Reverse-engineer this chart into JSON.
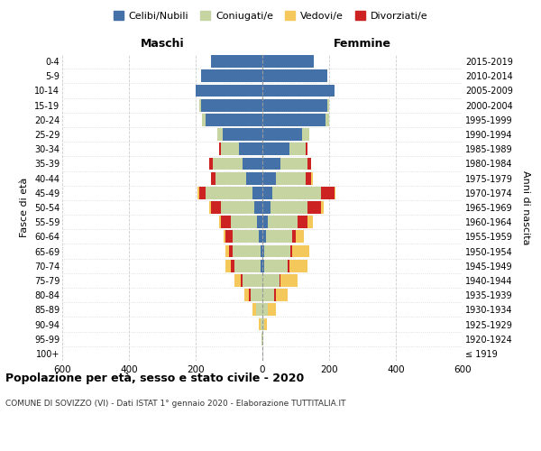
{
  "age_groups": [
    "100+",
    "95-99",
    "90-94",
    "85-89",
    "80-84",
    "75-79",
    "70-74",
    "65-69",
    "60-64",
    "55-59",
    "50-54",
    "45-49",
    "40-44",
    "35-39",
    "30-34",
    "25-29",
    "20-24",
    "15-19",
    "10-14",
    "5-9",
    "0-4"
  ],
  "birth_years": [
    "≤ 1919",
    "1920-1924",
    "1925-1929",
    "1930-1934",
    "1935-1939",
    "1940-1944",
    "1945-1949",
    "1950-1954",
    "1955-1959",
    "1960-1964",
    "1965-1969",
    "1970-1974",
    "1975-1979",
    "1980-1984",
    "1985-1989",
    "1990-1994",
    "1995-1999",
    "2000-2004",
    "2005-2009",
    "2010-2014",
    "2015-2019"
  ],
  "male": {
    "celibi": [
      0,
      0,
      0,
      0,
      0,
      0,
      5,
      5,
      10,
      15,
      25,
      30,
      50,
      60,
      70,
      120,
      170,
      185,
      200,
      185,
      155
    ],
    "coniugati": [
      0,
      2,
      5,
      20,
      35,
      60,
      80,
      85,
      80,
      80,
      100,
      140,
      90,
      90,
      55,
      15,
      10,
      5,
      0,
      0,
      0
    ],
    "vedovi": [
      0,
      2,
      5,
      10,
      15,
      20,
      15,
      10,
      5,
      5,
      5,
      5,
      0,
      0,
      0,
      0,
      0,
      0,
      0,
      0,
      0
    ],
    "divorziati": [
      0,
      0,
      0,
      0,
      5,
      5,
      10,
      10,
      20,
      30,
      30,
      20,
      15,
      10,
      5,
      0,
      0,
      0,
      0,
      0,
      0
    ]
  },
  "female": {
    "nubili": [
      0,
      0,
      0,
      0,
      0,
      0,
      5,
      5,
      10,
      15,
      25,
      30,
      40,
      55,
      80,
      120,
      190,
      195,
      215,
      195,
      155
    ],
    "coniugate": [
      0,
      2,
      5,
      15,
      35,
      50,
      70,
      80,
      80,
      90,
      110,
      145,
      90,
      80,
      50,
      20,
      10,
      5,
      0,
      0,
      0
    ],
    "vedove": [
      0,
      2,
      8,
      25,
      35,
      50,
      55,
      50,
      25,
      15,
      10,
      5,
      5,
      0,
      0,
      0,
      0,
      0,
      0,
      0,
      0
    ],
    "divorziate": [
      0,
      0,
      0,
      0,
      5,
      5,
      5,
      5,
      10,
      30,
      40,
      40,
      15,
      10,
      5,
      0,
      0,
      0,
      0,
      0,
      0
    ]
  },
  "colors": {
    "celibi_nubili": "#4472a8",
    "coniugati": "#c5d4a0",
    "vedovi": "#f5c85c",
    "divorziati": "#cc2222"
  },
  "xlim": 600,
  "title": "Popolazione per età, sesso e stato civile - 2020",
  "subtitle": "COMUNE DI SOVIZZO (VI) - Dati ISTAT 1° gennaio 2020 - Elaborazione TUTTITALIA.IT",
  "xlabel_left": "Maschi",
  "xlabel_right": "Femmine",
  "ylabel_left": "Fasce di età",
  "ylabel_right": "Anni di nascita",
  "legend_labels": [
    "Celibi/Nubili",
    "Coniugati/e",
    "Vedovi/e",
    "Divorziati/e"
  ],
  "bg_color": "#ffffff",
  "grid_color": "#cccccc"
}
